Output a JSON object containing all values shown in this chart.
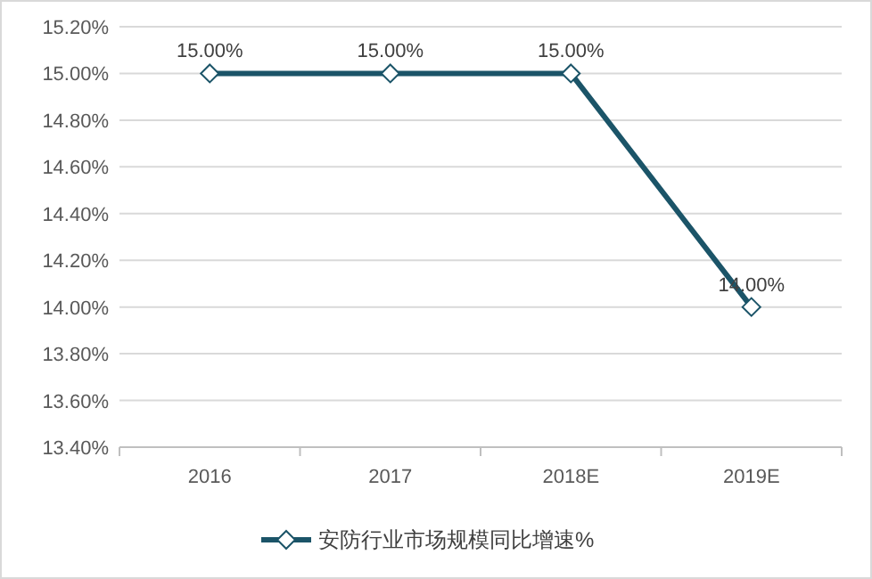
{
  "chart_data": {
    "type": "line",
    "categories": [
      "2016",
      "2017",
      "2018E",
      "2019E"
    ],
    "series": [
      {
        "name": "安防行业市场规模同比增速%",
        "color": "#1b5468",
        "values": [
          15,
          15,
          15,
          14
        ],
        "value_labels": [
          "15.00%",
          "15.00%",
          "15.00%",
          "14.00%"
        ]
      }
    ],
    "ylim": [
      13.4,
      15.2
    ],
    "yticks": [
      {
        "value": 13.4,
        "label": "13.40%"
      },
      {
        "value": 13.6,
        "label": "13.60%"
      },
      {
        "value": 13.8,
        "label": "13.80%"
      },
      {
        "value": 14.0,
        "label": "14.00%"
      },
      {
        "value": 14.2,
        "label": "14.20%"
      },
      {
        "value": 14.4,
        "label": "14.40%"
      },
      {
        "value": 14.6,
        "label": "14.60%"
      },
      {
        "value": 14.8,
        "label": "14.80%"
      },
      {
        "value": 15.0,
        "label": "15.00%"
      },
      {
        "value": 15.2,
        "label": "15.20%"
      }
    ],
    "grid": "y",
    "legend": "bottom",
    "marker": "diamond"
  }
}
